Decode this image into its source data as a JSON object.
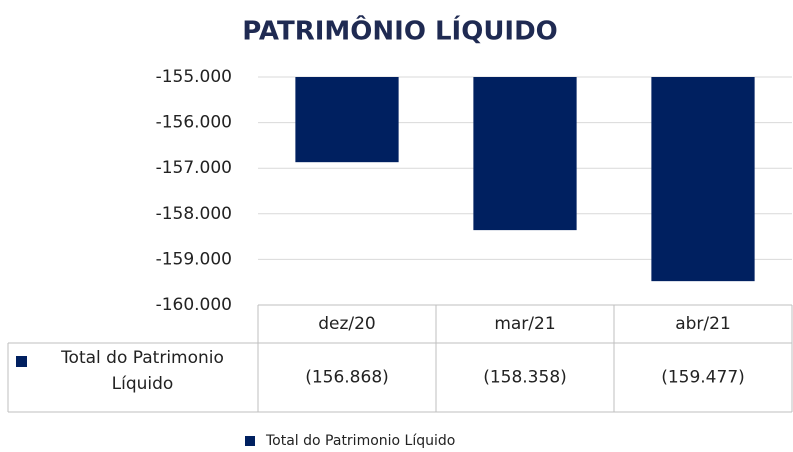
{
  "chart_data": {
    "type": "bar",
    "title": "PATRIMÔNIO LÍQUIDO",
    "categories": [
      "dez/20",
      "mar/21",
      "abr/21"
    ],
    "series": [
      {
        "name": "Total do Patrimonio Líquido",
        "color": "#002060",
        "values": [
          -156868,
          -158358,
          -159477
        ],
        "value_labels": [
          "(156.868)",
          "(158.358)",
          "(159.477)"
        ]
      }
    ],
    "ylim": [
      -160000,
      -155000
    ],
    "yticks": [
      {
        "value": -160000,
        "label": "-160.000"
      },
      {
        "value": -159000,
        "label": "-159.000"
      },
      {
        "value": -158000,
        "label": "-158.000"
      },
      {
        "value": -157000,
        "label": "-157.000"
      },
      {
        "value": -156000,
        "label": "-156.000"
      },
      {
        "value": -155000,
        "label": "-155.000"
      }
    ],
    "grid": true,
    "legend": "bottom"
  }
}
